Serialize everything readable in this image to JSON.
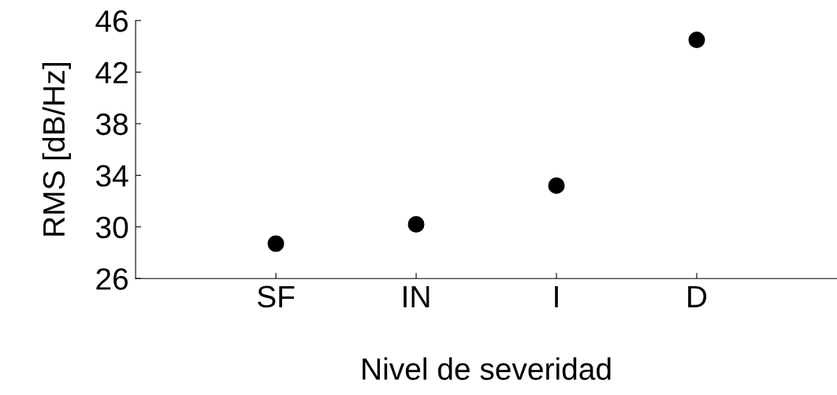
{
  "chart_data": {
    "type": "scatter",
    "xlabel": "Nivel de severidad",
    "ylabel": "RMS [dB/Hz]",
    "categories": [
      "SF",
      "IN",
      "I",
      "D"
    ],
    "series": [
      {
        "color": "#000000",
        "values": [
          28.7,
          30.2,
          33.2,
          44.5
        ]
      }
    ],
    "ylim": [
      26,
      46
    ],
    "yticks": [
      26,
      30,
      34,
      38,
      42,
      46
    ],
    "marker": "circle",
    "grid": false
  }
}
